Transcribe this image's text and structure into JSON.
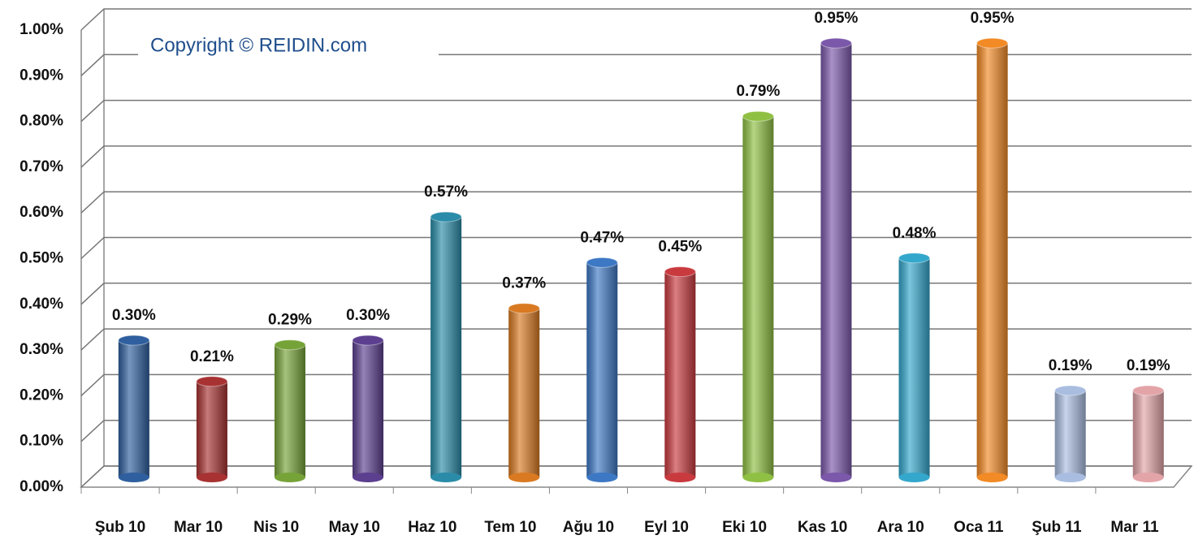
{
  "chart_data": {
    "type": "bar",
    "annotation": "Copyright © REIDIN.com",
    "categories": [
      "Şub 10",
      "Mar 10",
      "Nis 10",
      "May 10",
      "Haz 10",
      "Tem 10",
      "Ağu 10",
      "Eyl 10",
      "Eki 10",
      "Kas 10",
      "Ara 10",
      "Oca 11",
      "Şub 11",
      "Mar 11"
    ],
    "values": [
      0.3,
      0.21,
      0.29,
      0.3,
      0.57,
      0.37,
      0.47,
      0.45,
      0.79,
      0.95,
      0.48,
      0.95,
      0.19,
      0.19
    ],
    "value_labels": [
      "0.30%",
      "0.21%",
      "0.29%",
      "0.30%",
      "0.57%",
      "0.37%",
      "0.47%",
      "0.45%",
      "0.79%",
      "0.95%",
      "0.48%",
      "0.95%",
      "0.19%",
      "0.19%"
    ],
    "colors": [
      "#2f5f9e",
      "#a83232",
      "#76a338",
      "#5c3f8f",
      "#2a8ca8",
      "#d97a22",
      "#3d78c4",
      "#c93a3f",
      "#8fc043",
      "#7b58aa",
      "#34a7cc",
      "#f28a25",
      "#a9bde0",
      "#e3a4a8"
    ],
    "ylim": [
      0,
      1
    ],
    "yticks": [
      {
        "value": 0,
        "label": "0.00%"
      },
      {
        "value": 0.1,
        "label": "0.10%"
      },
      {
        "value": 0.2,
        "label": "0.20%"
      },
      {
        "value": 0.3,
        "label": "0.30%"
      },
      {
        "value": 0.4,
        "label": "0.40%"
      },
      {
        "value": 0.5,
        "label": "0.50%"
      },
      {
        "value": 0.6,
        "label": "0.60%"
      },
      {
        "value": 0.7,
        "label": "0.70%"
      },
      {
        "value": 0.8,
        "label": "0.80%"
      },
      {
        "value": 0.9,
        "label": "0.90%"
      },
      {
        "value": 1,
        "label": "1.00%"
      }
    ],
    "grid": true
  }
}
